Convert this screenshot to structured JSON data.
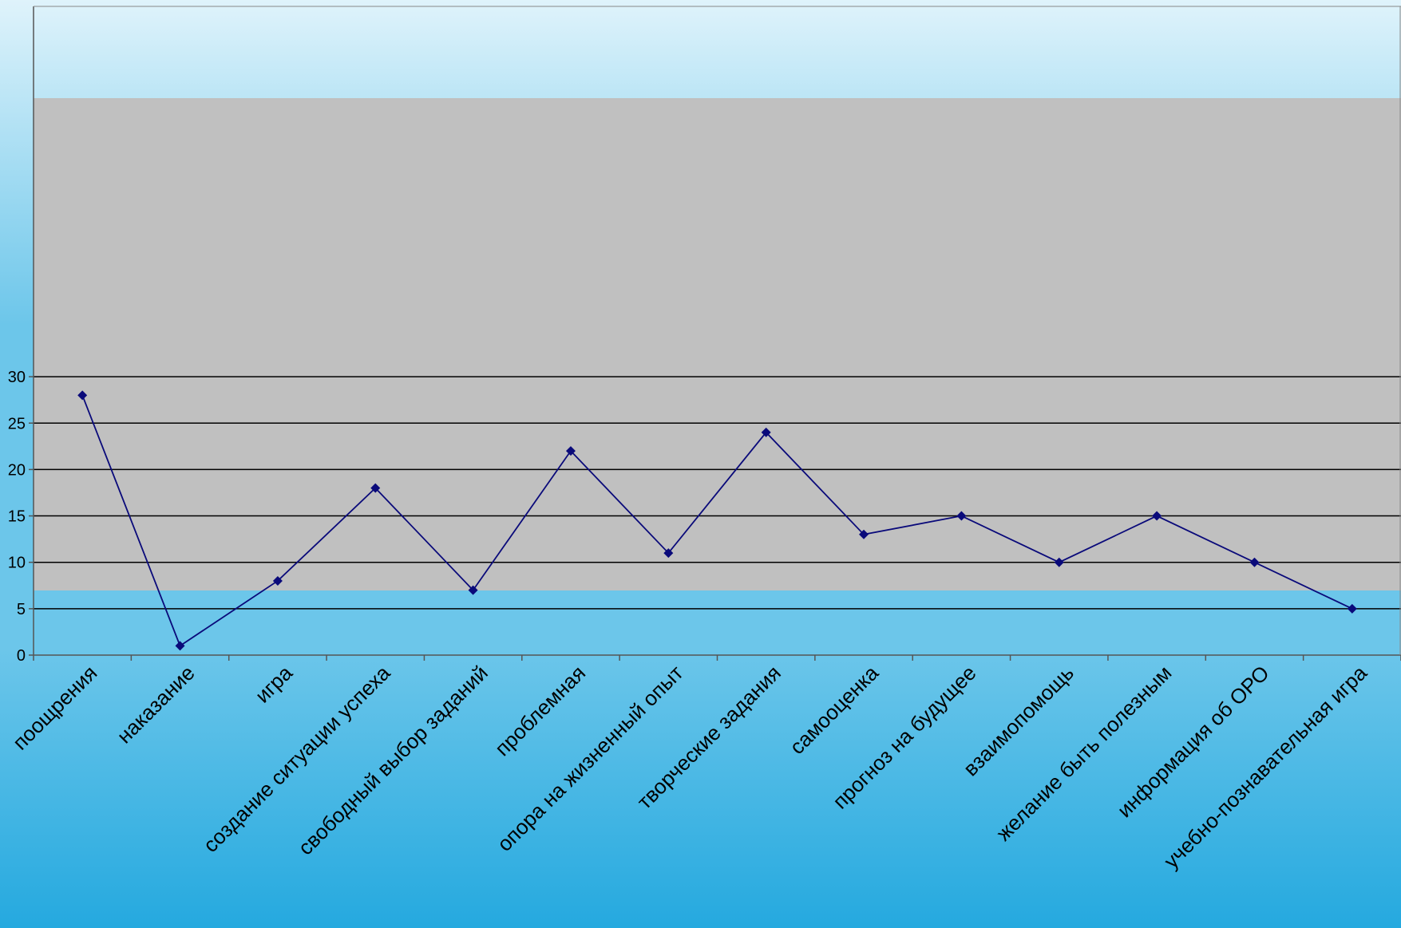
{
  "colors": {
    "plot_fill": "#c0c0c0",
    "series_line": "#0a0a7a",
    "grid_line": "#000000",
    "sky_top": "#dff3fb",
    "sky_mid": "#6cc6ea",
    "sea": "#25a9df"
  },
  "chart_data": {
    "type": "line",
    "categories": [
      "поощрения",
      "наказание",
      "игра",
      "создание ситуации успеха",
      "свободный выбор заданий",
      "проблемная",
      "опора на жизненный опыт",
      "творческие задания",
      "самооценка",
      "прогноз на будущее",
      "взаимопомощь",
      "желание быть полезным",
      "информация об ОРО",
      "учебно-познавательная игра"
    ],
    "series": [
      {
        "values": [
          28,
          1,
          8,
          18,
          7,
          22,
          11,
          24,
          13,
          15,
          10,
          15,
          10,
          5
        ]
      }
    ],
    "y_ticks": [
      "0",
      "5",
      "10",
      "15",
      "20",
      "25",
      "30"
    ],
    "ylim": [
      0,
      30
    ],
    "grid": true,
    "marker": "diamond",
    "title": "",
    "xlabel": "",
    "ylabel": ""
  }
}
